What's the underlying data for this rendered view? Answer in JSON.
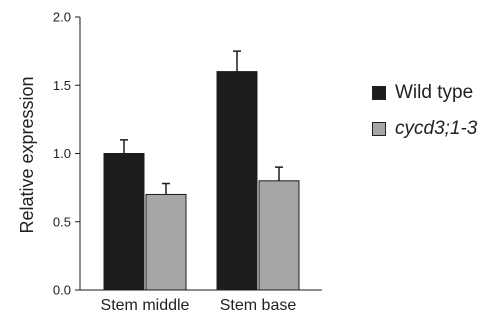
{
  "chart_data": {
    "type": "bar",
    "categories": [
      "Stem middle",
      "Stem base"
    ],
    "series": [
      {
        "name": "Wild type",
        "values": [
          1.0,
          1.6
        ],
        "errors": [
          0.1,
          0.15
        ],
        "color": "#1c1c1c",
        "italic": false
      },
      {
        "name": "cycd3;1-3",
        "values": [
          0.7,
          0.8
        ],
        "errors": [
          0.08,
          0.1
        ],
        "color": "#a6a6a6",
        "italic": true
      }
    ],
    "ylabel": "Relative expression",
    "ylim": [
      0,
      2.0
    ],
    "yticks": [
      "0.0",
      "0.5",
      "1.0",
      "1.5",
      "2.0"
    ],
    "grid": false,
    "legend_position": "right"
  }
}
